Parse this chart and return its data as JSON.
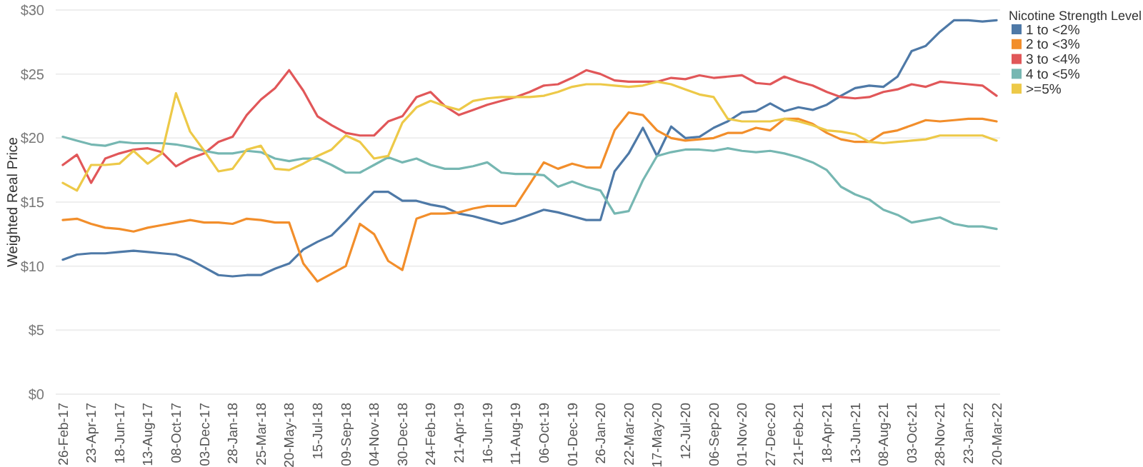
{
  "chart_data": {
    "type": "line",
    "ylabel": "Weighted Real Price",
    "legend_title": "Nicotine Strength Level",
    "legend": "top right",
    "grid": "y",
    "line_style": "solid",
    "marker": "none",
    "x": [
      "2017-02-26",
      "2017-03-26",
      "2017-04-23",
      "2017-05-21",
      "2017-06-18",
      "2017-07-16",
      "2017-08-13",
      "2017-09-10",
      "2017-10-08",
      "2017-11-05",
      "2017-12-03",
      "2017-12-31",
      "2018-01-28",
      "2018-02-25",
      "2018-03-25",
      "2018-04-22",
      "2018-05-20",
      "2018-06-17",
      "2018-07-15",
      "2018-08-12",
      "2018-09-09",
      "2018-10-07",
      "2018-11-04",
      "2018-12-02",
      "2018-12-30",
      "2019-01-27",
      "2019-02-24",
      "2019-03-24",
      "2019-04-21",
      "2019-05-19",
      "2019-06-16",
      "2019-07-14",
      "2019-08-11",
      "2019-09-08",
      "2019-10-06",
      "2019-11-03",
      "2019-12-01",
      "2019-12-29",
      "2020-01-26",
      "2020-02-23",
      "2020-03-22",
      "2020-04-19",
      "2020-05-17",
      "2020-06-14",
      "2020-07-12",
      "2020-08-09",
      "2020-09-06",
      "2020-10-04",
      "2020-11-01",
      "2020-11-29",
      "2020-12-27",
      "2021-01-24",
      "2021-02-21",
      "2021-03-21",
      "2021-04-18",
      "2021-05-16",
      "2021-06-13",
      "2021-07-11",
      "2021-08-08",
      "2021-09-05",
      "2021-10-03",
      "2021-10-31",
      "2021-11-28",
      "2021-12-26",
      "2022-01-23",
      "2022-02-20",
      "2022-03-20"
    ],
    "xlim": [
      "2017-02-12",
      "2022-03-27"
    ],
    "xticks": [
      {
        "value": "2017-02-26",
        "label": "26-Feb-17"
      },
      {
        "value": "2017-04-23",
        "label": "23-Apr-17"
      },
      {
        "value": "2017-06-18",
        "label": "18-Jun-17"
      },
      {
        "value": "2017-08-13",
        "label": "13-Aug-17"
      },
      {
        "value": "2017-10-08",
        "label": "08-Oct-17"
      },
      {
        "value": "2017-12-03",
        "label": "03-Dec-17"
      },
      {
        "value": "2018-01-28",
        "label": "28-Jan-18"
      },
      {
        "value": "2018-03-25",
        "label": "25-Mar-18"
      },
      {
        "value": "2018-05-20",
        "label": "20-May-18"
      },
      {
        "value": "2018-07-15",
        "label": "15-Jul-18"
      },
      {
        "value": "2018-09-09",
        "label": "09-Sep-18"
      },
      {
        "value": "2018-11-04",
        "label": "04-Nov-18"
      },
      {
        "value": "2018-12-30",
        "label": "30-Dec-18"
      },
      {
        "value": "2019-02-24",
        "label": "24-Feb-19"
      },
      {
        "value": "2019-04-21",
        "label": "21-Apr-19"
      },
      {
        "value": "2019-06-16",
        "label": "16-Jun-19"
      },
      {
        "value": "2019-08-11",
        "label": "11-Aug-19"
      },
      {
        "value": "2019-10-06",
        "label": "06-Oct-19"
      },
      {
        "value": "2019-12-01",
        "label": "01-Dec-19"
      },
      {
        "value": "2020-01-26",
        "label": "26-Jan-20"
      },
      {
        "value": "2020-03-22",
        "label": "22-Mar-20"
      },
      {
        "value": "2020-05-17",
        "label": "17-May-20"
      },
      {
        "value": "2020-07-12",
        "label": "12-Jul-20"
      },
      {
        "value": "2020-09-06",
        "label": "06-Sep-20"
      },
      {
        "value": "2020-11-01",
        "label": "01-Nov-20"
      },
      {
        "value": "2020-12-27",
        "label": "27-Dec-20"
      },
      {
        "value": "2021-02-21",
        "label": "21-Feb-21"
      },
      {
        "value": "2021-04-18",
        "label": "18-Apr-21"
      },
      {
        "value": "2021-06-13",
        "label": "13-Jun-21"
      },
      {
        "value": "2021-08-08",
        "label": "08-Aug-21"
      },
      {
        "value": "2021-10-03",
        "label": "03-Oct-21"
      },
      {
        "value": "2021-11-28",
        "label": "28-Nov-21"
      },
      {
        "value": "2022-01-23",
        "label": "23-Jan-22"
      },
      {
        "value": "2022-03-20",
        "label": "20-Mar-22"
      }
    ],
    "ylim": [
      0,
      30
    ],
    "yticks": [
      {
        "value": 0,
        "label": "$0"
      },
      {
        "value": 5,
        "label": "$5"
      },
      {
        "value": 10,
        "label": "$10"
      },
      {
        "value": 15,
        "label": "$15"
      },
      {
        "value": 20,
        "label": "$20"
      },
      {
        "value": 25,
        "label": "$25"
      },
      {
        "value": 30,
        "label": "$30"
      }
    ],
    "series": [
      {
        "name": "1 to <2%",
        "color": "#4e79a7",
        "values": [
          10.5,
          10.9,
          11.0,
          11.0,
          11.1,
          11.2,
          11.1,
          11.0,
          10.9,
          10.5,
          9.9,
          9.3,
          9.2,
          9.3,
          9.3,
          9.8,
          10.2,
          11.3,
          11.9,
          12.4,
          13.5,
          14.7,
          15.8,
          15.8,
          15.1,
          15.1,
          14.8,
          14.6,
          14.1,
          13.9,
          13.6,
          13.3,
          13.6,
          14.0,
          14.4,
          14.2,
          13.9,
          13.6,
          13.6,
          17.4,
          18.8,
          20.8,
          18.6,
          20.9,
          20.0,
          20.1,
          20.8,
          21.3,
          22.0,
          22.1,
          22.7,
          22.1,
          22.4,
          22.2,
          22.6,
          23.3,
          23.9,
          24.1,
          24.0,
          24.8,
          26.8,
          27.2,
          28.3,
          29.2,
          29.2,
          29.1,
          29.2
        ]
      },
      {
        "name": "2 to <3%",
        "color": "#f28e2b",
        "values": [
          13.6,
          13.7,
          13.3,
          13.0,
          12.9,
          12.7,
          13.0,
          13.2,
          13.4,
          13.6,
          13.4,
          13.4,
          13.3,
          13.7,
          13.6,
          13.4,
          13.4,
          10.2,
          8.8,
          9.4,
          10.0,
          13.3,
          12.5,
          10.4,
          9.7,
          13.7,
          14.1,
          14.1,
          14.2,
          14.5,
          14.7,
          14.7,
          14.7,
          16.4,
          18.1,
          17.6,
          18.0,
          17.7,
          17.7,
          20.6,
          22.0,
          21.8,
          20.6,
          20.0,
          19.8,
          19.9,
          20.0,
          20.4,
          20.4,
          20.8,
          20.6,
          21.5,
          21.5,
          21.1,
          20.4,
          19.9,
          19.7,
          19.7,
          20.4,
          20.6,
          21.0,
          21.4,
          21.3,
          21.4,
          21.5,
          21.5,
          21.3
        ]
      },
      {
        "name": "3 to <4%",
        "color": "#e15759",
        "values": [
          17.9,
          18.7,
          16.5,
          18.4,
          18.8,
          19.1,
          19.2,
          18.9,
          17.8,
          18.4,
          18.8,
          19.7,
          20.1,
          21.8,
          23.0,
          23.9,
          25.3,
          23.7,
          21.7,
          21.0,
          20.4,
          20.2,
          20.2,
          21.3,
          21.7,
          23.2,
          23.6,
          22.5,
          21.8,
          22.2,
          22.6,
          22.9,
          23.2,
          23.6,
          24.1,
          24.2,
          24.7,
          25.3,
          25.0,
          24.5,
          24.4,
          24.4,
          24.4,
          24.7,
          24.6,
          24.9,
          24.7,
          24.8,
          24.9,
          24.3,
          24.2,
          24.8,
          24.4,
          24.1,
          23.6,
          23.2,
          23.1,
          23.2,
          23.6,
          23.8,
          24.2,
          24.0,
          24.4,
          24.3,
          24.2,
          24.1,
          23.3
        ]
      },
      {
        "name": "4 to <5%",
        "color": "#76b7b2",
        "values": [
          20.1,
          19.8,
          19.5,
          19.4,
          19.7,
          19.6,
          19.6,
          19.6,
          19.5,
          19.3,
          19.0,
          18.8,
          18.8,
          19.0,
          18.9,
          18.4,
          18.2,
          18.4,
          18.4,
          17.9,
          17.3,
          17.3,
          17.9,
          18.5,
          18.1,
          18.4,
          17.9,
          17.6,
          17.6,
          17.8,
          18.1,
          17.3,
          17.2,
          17.2,
          17.1,
          16.2,
          16.6,
          16.2,
          15.9,
          14.1,
          14.3,
          16.7,
          18.6,
          18.9,
          19.1,
          19.1,
          19.0,
          19.2,
          19.0,
          18.9,
          19.0,
          18.8,
          18.5,
          18.1,
          17.5,
          16.2,
          15.6,
          15.2,
          14.4,
          14.0,
          13.4,
          13.6,
          13.8,
          13.3,
          13.1,
          13.1,
          12.9
        ]
      },
      {
        "name": ">=5%",
        "color": "#edc948",
        "values": [
          16.5,
          15.9,
          17.9,
          17.9,
          18.0,
          19.0,
          18.0,
          18.8,
          23.5,
          20.5,
          19.0,
          17.4,
          17.6,
          19.1,
          19.4,
          17.6,
          17.5,
          18.0,
          18.6,
          19.1,
          20.2,
          19.7,
          18.4,
          18.6,
          21.2,
          22.4,
          22.9,
          22.5,
          22.2,
          22.9,
          23.1,
          23.2,
          23.2,
          23.2,
          23.3,
          23.6,
          24.0,
          24.2,
          24.2,
          24.1,
          24.0,
          24.1,
          24.4,
          24.2,
          23.8,
          23.4,
          23.2,
          21.5,
          21.3,
          21.3,
          21.3,
          21.5,
          21.3,
          21.0,
          20.6,
          20.5,
          20.3,
          19.7,
          19.6,
          19.7,
          19.8,
          19.9,
          20.2,
          20.2,
          20.2,
          20.2,
          19.8
        ]
      }
    ]
  }
}
